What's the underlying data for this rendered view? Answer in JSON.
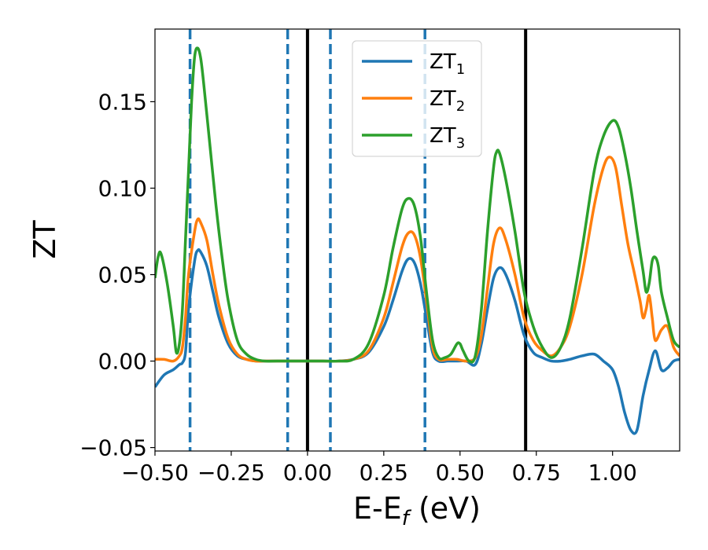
{
  "chart_data": {
    "type": "line",
    "xlabel": "E-E",
    "xlabel_subscript": "f",
    "xlabel_unit": " (eV)",
    "ylabel": "ZT",
    "xlim": [
      -0.5,
      1.22
    ],
    "ylim": [
      -0.052,
      0.192
    ],
    "xticks": [
      -0.5,
      -0.25,
      0.0,
      0.25,
      0.5,
      0.75,
      1.0
    ],
    "xtick_labels": [
      "−0.50",
      "−0.25",
      "0.00",
      "0.25",
      "0.50",
      "0.75",
      "1.00"
    ],
    "yticks": [
      -0.05,
      0.0,
      0.05,
      0.1,
      0.15
    ],
    "ytick_labels": [
      "−0.05",
      "0.00",
      "0.05",
      "0.10",
      "0.15"
    ],
    "grid": false,
    "legend": {
      "placement": "upper-center",
      "entries": [
        {
          "base": "ZT",
          "sub": "1"
        },
        {
          "base": "ZT",
          "sub": "2"
        },
        {
          "base": "ZT",
          "sub": "3"
        }
      ]
    },
    "vlines": [
      {
        "x": -0.385,
        "color": "#1f77b4",
        "style": "dashed"
      },
      {
        "x": -0.065,
        "color": "#1f77b4",
        "style": "dashed"
      },
      {
        "x": 0.0,
        "color": "#000000",
        "style": "solid"
      },
      {
        "x": 0.075,
        "color": "#1f77b4",
        "style": "dashed"
      },
      {
        "x": 0.385,
        "color": "#1f77b4",
        "style": "dashed"
      },
      {
        "x": 0.715,
        "color": "#000000",
        "style": "solid"
      }
    ],
    "series": [
      {
        "name": "ZT1",
        "color": "#1f77b4",
        "x": [
          -0.5,
          -0.47,
          -0.44,
          -0.42,
          -0.41,
          -0.4,
          -0.39,
          -0.37,
          -0.36,
          -0.35,
          -0.33,
          -0.31,
          -0.29,
          -0.26,
          -0.23,
          -0.2,
          -0.17,
          -0.14,
          -0.1,
          -0.05,
          0,
          0.05,
          0.1,
          0.15,
          0.2,
          0.25,
          0.28,
          0.31,
          0.33,
          0.35,
          0.37,
          0.39,
          0.41,
          0.43,
          0.46,
          0.49,
          0.52,
          0.55,
          0.57,
          0.59,
          0.61,
          0.63,
          0.65,
          0.68,
          0.71,
          0.74,
          0.77,
          0.8,
          0.83,
          0.86,
          0.9,
          0.94,
          0.97,
          1.0,
          1.02,
          1.04,
          1.06,
          1.08,
          1.1,
          1.12,
          1.14,
          1.16,
          1.18,
          1.2,
          1.22
        ],
        "y": [
          -0.015,
          -0.008,
          -0.005,
          -0.002,
          -0.001,
          0.005,
          0.03,
          0.058,
          0.064,
          0.063,
          0.055,
          0.04,
          0.025,
          0.01,
          0.003,
          0.001,
          0.0,
          0.0,
          0.0,
          0.0,
          0.0,
          0.0,
          0.0,
          0.001,
          0.005,
          0.02,
          0.035,
          0.052,
          0.059,
          0.057,
          0.045,
          0.025,
          0.005,
          0.0,
          0.0,
          0.0,
          0.0,
          -0.002,
          0.01,
          0.03,
          0.048,
          0.054,
          0.05,
          0.035,
          0.015,
          0.005,
          0.002,
          0.0,
          0.0,
          0.001,
          0.003,
          0.004,
          0.0,
          -0.005,
          -0.015,
          -0.03,
          -0.04,
          -0.04,
          -0.02,
          -0.005,
          0.006,
          -0.005,
          -0.004,
          0.0,
          0.001
        ]
      },
      {
        "name": "ZT2",
        "color": "#ff7f0e",
        "x": [
          -0.5,
          -0.47,
          -0.44,
          -0.42,
          -0.41,
          -0.4,
          -0.39,
          -0.37,
          -0.36,
          -0.35,
          -0.33,
          -0.31,
          -0.29,
          -0.26,
          -0.23,
          -0.2,
          -0.17,
          -0.14,
          -0.1,
          -0.05,
          0,
          0.05,
          0.1,
          0.15,
          0.2,
          0.25,
          0.28,
          0.31,
          0.33,
          0.35,
          0.37,
          0.39,
          0.41,
          0.43,
          0.46,
          0.49,
          0.52,
          0.55,
          0.57,
          0.59,
          0.61,
          0.63,
          0.65,
          0.68,
          0.71,
          0.74,
          0.77,
          0.8,
          0.83,
          0.86,
          0.9,
          0.94,
          0.97,
          0.99,
          1.01,
          1.03,
          1.05,
          1.07,
          1.09,
          1.1,
          1.11,
          1.12,
          1.13,
          1.14,
          1.16,
          1.18,
          1.2,
          1.22
        ],
        "y": [
          0.001,
          0.001,
          0.0,
          0.003,
          0.008,
          0.025,
          0.05,
          0.075,
          0.082,
          0.08,
          0.07,
          0.05,
          0.032,
          0.013,
          0.004,
          0.001,
          0.0,
          0.0,
          0.0,
          0.0,
          0.0,
          0.0,
          0.0,
          0.001,
          0.006,
          0.025,
          0.045,
          0.066,
          0.074,
          0.073,
          0.06,
          0.035,
          0.008,
          0.001,
          0.001,
          0.001,
          0.0,
          0.002,
          0.015,
          0.042,
          0.068,
          0.077,
          0.07,
          0.05,
          0.025,
          0.012,
          0.006,
          0.003,
          0.008,
          0.02,
          0.05,
          0.09,
          0.112,
          0.118,
          0.112,
          0.09,
          0.068,
          0.052,
          0.035,
          0.025,
          0.03,
          0.038,
          0.025,
          0.012,
          0.018,
          0.02,
          0.008,
          0.003
        ]
      },
      {
        "name": "ZT3",
        "color": "#2ca02c",
        "x": [
          -0.5,
          -0.49,
          -0.48,
          -0.46,
          -0.44,
          -0.43,
          -0.42,
          -0.41,
          -0.4,
          -0.39,
          -0.38,
          -0.37,
          -0.36,
          -0.35,
          -0.34,
          -0.32,
          -0.3,
          -0.28,
          -0.26,
          -0.23,
          -0.2,
          -0.17,
          -0.14,
          -0.1,
          -0.05,
          0,
          0.05,
          0.1,
          0.15,
          0.2,
          0.25,
          0.28,
          0.31,
          0.33,
          0.35,
          0.37,
          0.39,
          0.41,
          0.43,
          0.45,
          0.47,
          0.49,
          0.5,
          0.51,
          0.53,
          0.55,
          0.57,
          0.59,
          0.61,
          0.62,
          0.63,
          0.65,
          0.68,
          0.71,
          0.74,
          0.77,
          0.8,
          0.83,
          0.86,
          0.9,
          0.94,
          0.97,
          1.0,
          1.02,
          1.04,
          1.06,
          1.08,
          1.1,
          1.11,
          1.12,
          1.13,
          1.14,
          1.15,
          1.16,
          1.18,
          1.2,
          1.22
        ],
        "y": [
          0.048,
          0.06,
          0.062,
          0.045,
          0.02,
          0.005,
          0.01,
          0.03,
          0.07,
          0.11,
          0.15,
          0.176,
          0.181,
          0.175,
          0.16,
          0.125,
          0.09,
          0.06,
          0.035,
          0.012,
          0.004,
          0.001,
          0.0,
          0.0,
          0.0,
          0.0,
          0.0,
          0.0,
          0.001,
          0.01,
          0.038,
          0.065,
          0.088,
          0.094,
          0.09,
          0.072,
          0.04,
          0.012,
          0.002,
          0.002,
          0.004,
          0.01,
          0.01,
          0.006,
          0.0,
          0.003,
          0.03,
          0.075,
          0.112,
          0.121,
          0.12,
          0.105,
          0.075,
          0.04,
          0.02,
          0.008,
          0.002,
          0.008,
          0.025,
          0.065,
          0.11,
          0.13,
          0.139,
          0.135,
          0.12,
          0.1,
          0.075,
          0.052,
          0.04,
          0.045,
          0.058,
          0.06,
          0.055,
          0.04,
          0.025,
          0.012,
          0.008
        ]
      }
    ]
  }
}
